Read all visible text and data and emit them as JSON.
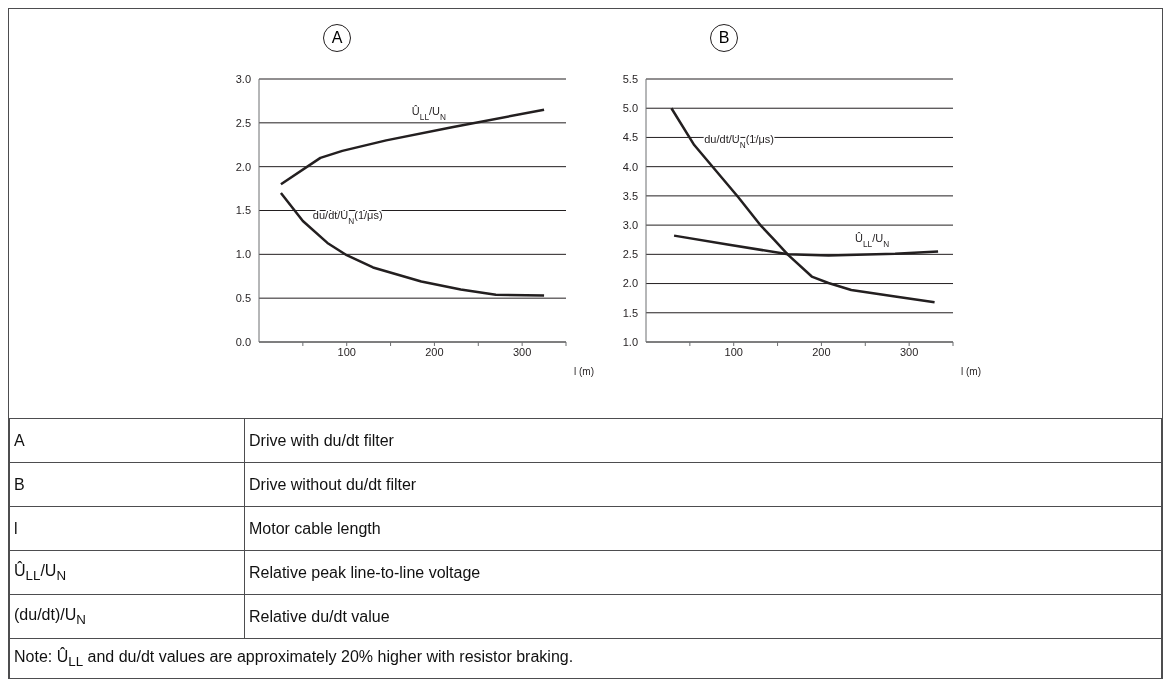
{
  "chart_data": [
    {
      "type": "line",
      "title": "A",
      "xlabel": "l (m)",
      "xlim": [
        0,
        350
      ],
      "xticks": [
        {
          "value": 50,
          "label": null
        },
        100,
        {
          "value": 150,
          "label": null
        },
        200,
        {
          "value": 250,
          "label": null
        },
        300,
        {
          "value": 350,
          "label": null
        }
      ],
      "ylim": [
        0,
        3
      ],
      "yticks": [
        {
          "value": 0,
          "label": "0.0"
        },
        0.5,
        {
          "value": 1,
          "label": "1.0"
        },
        1.5,
        {
          "value": 2,
          "label": "2.0"
        },
        2.5,
        {
          "value": 3,
          "label": "3.0"
        }
      ],
      "grid": "y",
      "marker": "none",
      "line_style": "solid",
      "series": [
        {
          "name": "Û$_{LL}$/U$_{N}$",
          "color": "#231f20",
          "x": [
            25,
            70,
            95,
            145,
            220,
            325
          ],
          "values": [
            1.8,
            2.1,
            2.18,
            2.3,
            2.45,
            2.65
          ]
        },
        {
          "name": "du/dt/U$_{N}$(1/μs)",
          "color": "#231f20",
          "x": [
            25,
            50,
            78,
            100,
            130,
            185,
            230,
            270,
            325
          ],
          "values": [
            1.7,
            1.38,
            1.13,
            0.99,
            0.85,
            0.69,
            0.6,
            0.54,
            0.53
          ]
        }
      ]
    },
    {
      "type": "line",
      "title": "B",
      "xlabel": "l (m)",
      "xlim": [
        0,
        350
      ],
      "xticks": [
        {
          "value": 50,
          "label": null
        },
        100,
        {
          "value": 150,
          "label": null
        },
        200,
        {
          "value": 250,
          "label": null
        },
        300,
        {
          "value": 350,
          "label": null
        }
      ],
      "ylim": [
        1,
        5.5
      ],
      "yticks": [
        {
          "value": 1,
          "label": "1.0"
        },
        1.5,
        {
          "value": 2,
          "label": "2.0"
        },
        2.5,
        {
          "value": 3,
          "label": "3.0"
        },
        3.5,
        {
          "value": 4,
          "label": "4.0"
        },
        4.5,
        {
          "value": 5,
          "label": "5.0"
        },
        5.5
      ],
      "grid": "y",
      "marker": "none",
      "line_style": "solid",
      "series": [
        {
          "name": "Û$_{LL}$/U$_{N}$",
          "color": "#231f20",
          "x": [
            32,
            93,
            162,
            208,
            284,
            333
          ],
          "values": [
            2.82,
            2.67,
            2.5,
            2.48,
            2.51,
            2.55
          ]
        },
        {
          "name": "du/dt/U$_{N}$(1/μs)",
          "color": "#231f20",
          "x": [
            29,
            55,
            105,
            131,
            146,
            162,
            189,
            208,
            234,
            284,
            329
          ],
          "values": [
            5.0,
            4.37,
            3.48,
            2.99,
            2.75,
            2.49,
            2.12,
            2.01,
            1.89,
            1.78,
            1.68
          ]
        }
      ]
    },
    {
      "type": "other",
      "annotations": [
        "A",
        "Drive with du/dt filter",
        "B",
        "Drive without du/dt filter",
        "l",
        "Motor cable length",
        "Û$_{LL}$/U$_{N}$",
        "Relative peak line-to-line voltage",
        "(du/dt)/U$_{N}$",
        "Relative du/dt value",
        "Note: Û$_{LL}$ and du/dt values are approximately 20% higher with resistor braking."
      ]
    }
  ]
}
